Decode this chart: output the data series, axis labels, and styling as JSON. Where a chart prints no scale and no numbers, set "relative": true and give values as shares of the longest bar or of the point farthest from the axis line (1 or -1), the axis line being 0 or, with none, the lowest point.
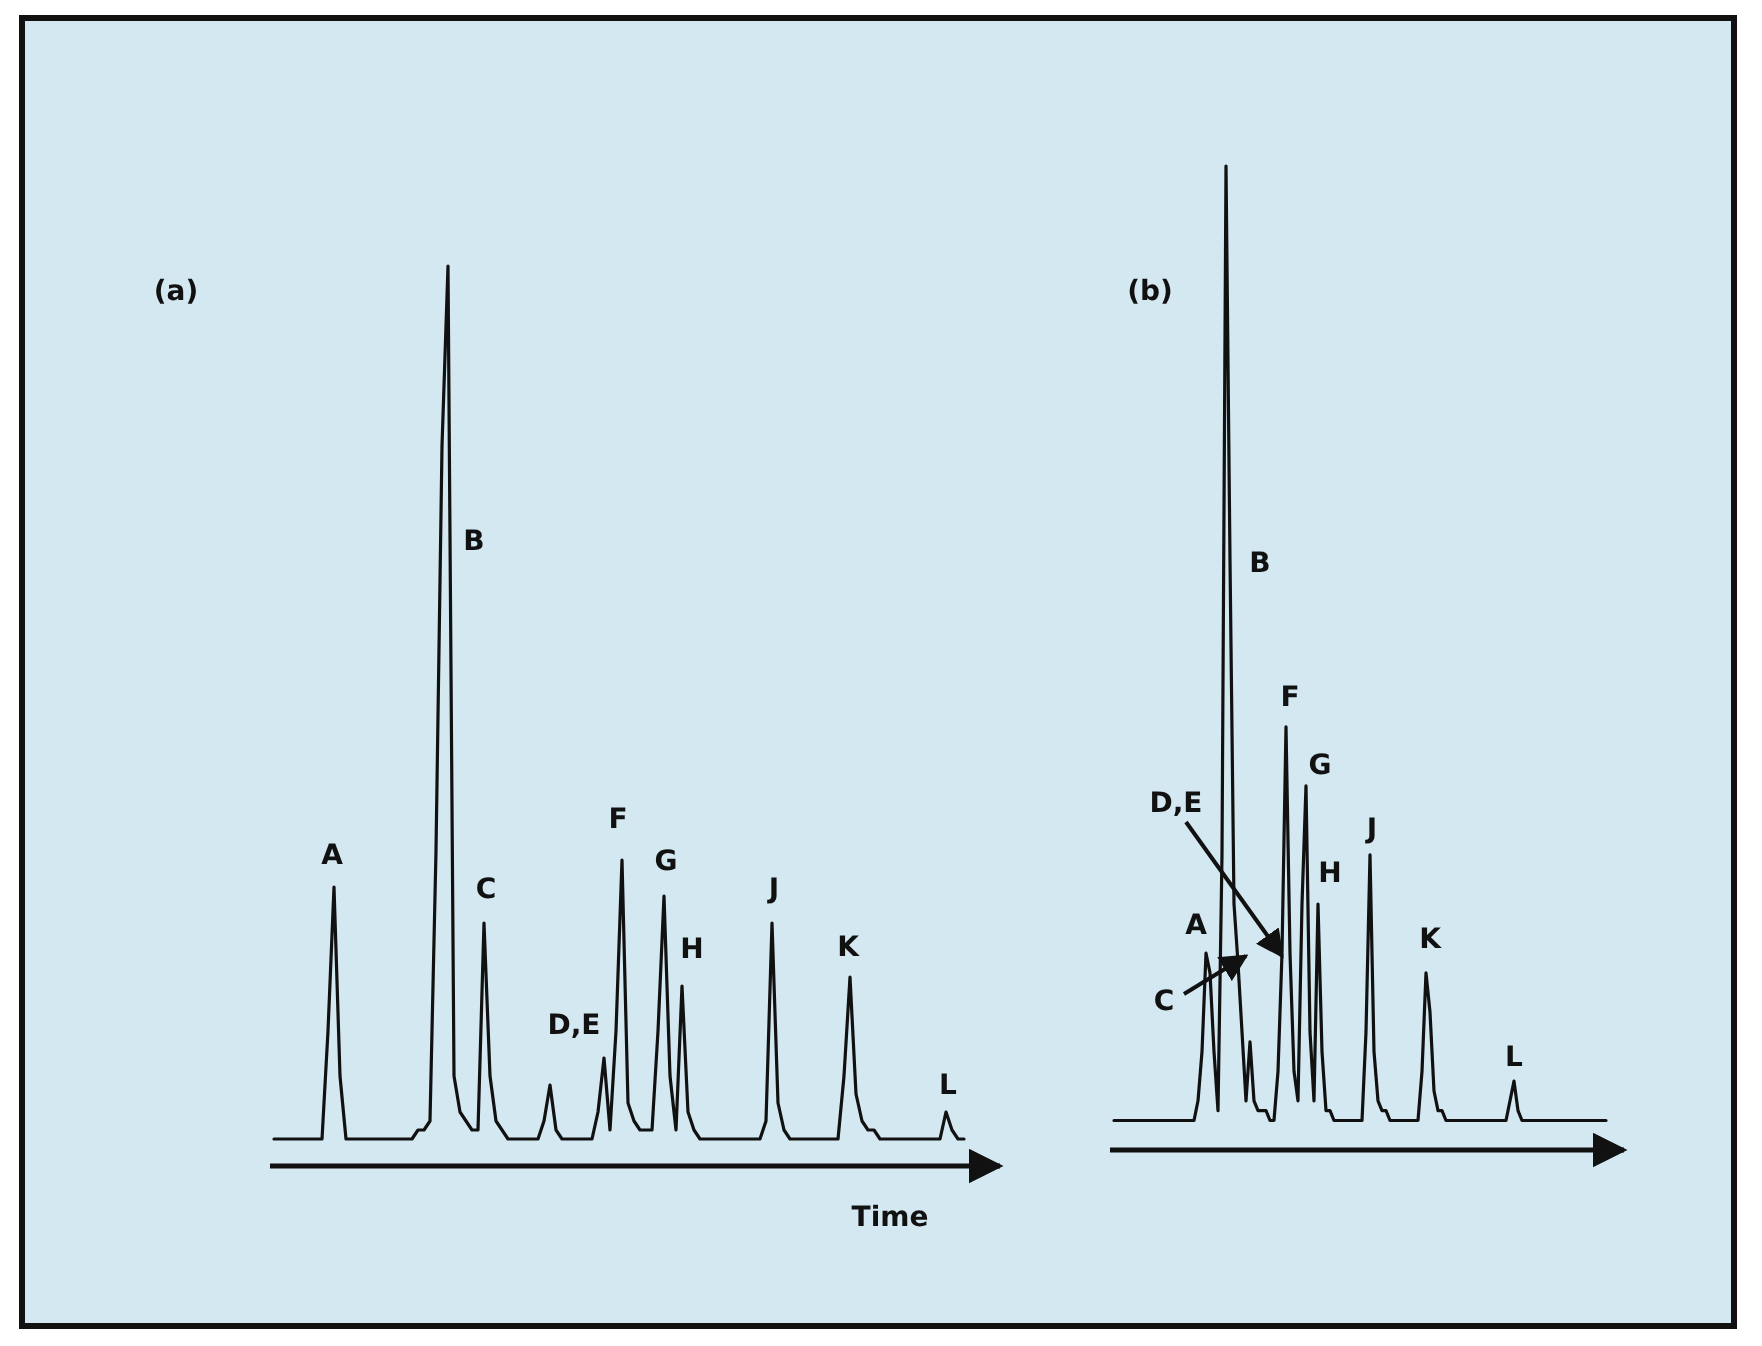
{
  "chart_data": [
    {
      "type": "line",
      "relative": true,
      "xlabel": "Time",
      "annotations": [
        "(a)",
        "A",
        "B",
        "C",
        "D,E",
        "F",
        "G",
        "H",
        "J",
        "K",
        "L"
      ],
      "categories": [
        null,
        null,
        null,
        null,
        null,
        null,
        null,
        null,
        null,
        null,
        null,
        null,
        null,
        null,
        null,
        null,
        null,
        null,
        null,
        null,
        null,
        null,
        null,
        null,
        null,
        null,
        null,
        null,
        null,
        null,
        null,
        null,
        null,
        null,
        null,
        null,
        null,
        null,
        null,
        null,
        null,
        null,
        null,
        null,
        null,
        null,
        null,
        null,
        null,
        null,
        null,
        null,
        null,
        null,
        null,
        null,
        null,
        null,
        null,
        null,
        null,
        null,
        null,
        null,
        null,
        null,
        null,
        null,
        null,
        null,
        null,
        null,
        null,
        null,
        null,
        null,
        null,
        null,
        null,
        null,
        null,
        null,
        null,
        null,
        null,
        null,
        null,
        null,
        null,
        null,
        null,
        null,
        null,
        null,
        null,
        null,
        null,
        null,
        null,
        null,
        null,
        null,
        null,
        null,
        null,
        null,
        null,
        null,
        null,
        null,
        null,
        null,
        null,
        null,
        null,
        null
      ],
      "series": [
        {
          "color": "#111111",
          "values": [
            0.03,
            0.03,
            0.03,
            0.03,
            0.03,
            0.03,
            0.03,
            0.03,
            0.03,
            0.15,
            0.31,
            0.1,
            0.03,
            0.03,
            0.03,
            0.03,
            0.03,
            0.03,
            0.03,
            0.03,
            0.03,
            0.03,
            0.03,
            0.03,
            0.04,
            0.04,
            0.05,
            0.35,
            0.8,
            1,
            0.1,
            0.06,
            0.05,
            0.04,
            0.04,
            0.27,
            0.1,
            0.05,
            0.04,
            0.03,
            0.03,
            0.03,
            0.03,
            0.03,
            0.03,
            0.05,
            0.09,
            0.04,
            0.03,
            0.03,
            0.03,
            0.03,
            0.03,
            0.03,
            0.06,
            0.12,
            0.04,
            0.15,
            0.34,
            0.07,
            0.05,
            0.04,
            0.04,
            0.04,
            0.15,
            0.3,
            0.1,
            0.04,
            0.2,
            0.06,
            0.04,
            0.03,
            0.03,
            0.03,
            0.03,
            0.03,
            0.03,
            0.03,
            0.03,
            0.03,
            0.03,
            0.03,
            0.05,
            0.27,
            0.07,
            0.04,
            0.03,
            0.03,
            0.03,
            0.03,
            0.03,
            0.03,
            0.03,
            0.03,
            0.03,
            0.1,
            0.21,
            0.08,
            0.05,
            0.04,
            0.04,
            0.03,
            0.03,
            0.03,
            0.03,
            0.03,
            0.03,
            0.03,
            0.03,
            0.03,
            0.03,
            0.03,
            0.06,
            0.04,
            0.03,
            0.03
          ]
        }
      ]
    },
    {
      "type": "line",
      "relative": true,
      "annotations": [
        "(b)",
        "A",
        "B",
        "C",
        "D,E",
        "F",
        "G",
        "H",
        "J",
        "K",
        "L"
      ],
      "categories": [
        null,
        null,
        null,
        null,
        null,
        null,
        null,
        null,
        null,
        null,
        null,
        null,
        null,
        null,
        null,
        null,
        null,
        null,
        null,
        null,
        null,
        null,
        null,
        null,
        null,
        null,
        null,
        null,
        null,
        null,
        null,
        null,
        null,
        null,
        null,
        null,
        null,
        null,
        null,
        null,
        null,
        null,
        null,
        null,
        null,
        null,
        null,
        null,
        null,
        null,
        null,
        null,
        null,
        null,
        null,
        null,
        null,
        null,
        null,
        null,
        null,
        null,
        null,
        null,
        null,
        null,
        null,
        null,
        null,
        null,
        null,
        null,
        null,
        null,
        null,
        null,
        null,
        null,
        null,
        null,
        null,
        null,
        null,
        null,
        null,
        null,
        null,
        null,
        null,
        null,
        null,
        null,
        null,
        null,
        null,
        null,
        null,
        null,
        null,
        null,
        null,
        null,
        null,
        null,
        null,
        null,
        null,
        null,
        null,
        null,
        null,
        null,
        null,
        null,
        null,
        null,
        null,
        null,
        null,
        null,
        null,
        null,
        null,
        null
      ],
      "series": [
        {
          "color": "#111111",
          "values": [
            0.03,
            0.03,
            0.03,
            0.03,
            0.03,
            0.03,
            0.03,
            0.03,
            0.03,
            0.03,
            0.03,
            0.03,
            0.03,
            0.03,
            0.03,
            0.03,
            0.03,
            0.03,
            0.03,
            0.03,
            0.03,
            0.05,
            0.1,
            0.2,
            0.18,
            0.1,
            0.04,
            0.3,
            1,
            0.6,
            0.25,
            0.19,
            0.12,
            0.05,
            0.11,
            0.05,
            0.04,
            0.04,
            0.04,
            0.03,
            0.03,
            0.08,
            0.2,
            0.43,
            0.2,
            0.08,
            0.05,
            0.25,
            0.37,
            0.12,
            0.05,
            0.25,
            0.1,
            0.04,
            0.04,
            0.03,
            0.03,
            0.03,
            0.03,
            0.03,
            0.03,
            0.03,
            0.03,
            0.12,
            0.3,
            0.1,
            0.05,
            0.04,
            0.04,
            0.03,
            0.03,
            0.03,
            0.03,
            0.03,
            0.03,
            0.03,
            0.03,
            0.08,
            0.18,
            0.14,
            0.06,
            0.04,
            0.04,
            0.03,
            0.03,
            0.03,
            0.03,
            0.03,
            0.03,
            0.03,
            0.03,
            0.03,
            0.03,
            0.03,
            0.03,
            0.03,
            0.03,
            0.03,
            0.03,
            0.05,
            0.07,
            0.04,
            0.03,
            0.03,
            0.03,
            0.03,
            0.03,
            0.03,
            0.03,
            0.03,
            0.03,
            0.03,
            0.03,
            0.03,
            0.03,
            0.03,
            0.03,
            0.03,
            0.03,
            0.03,
            0.03,
            0.03,
            0.03,
            0.03
          ]
        }
      ]
    }
  ]
}
